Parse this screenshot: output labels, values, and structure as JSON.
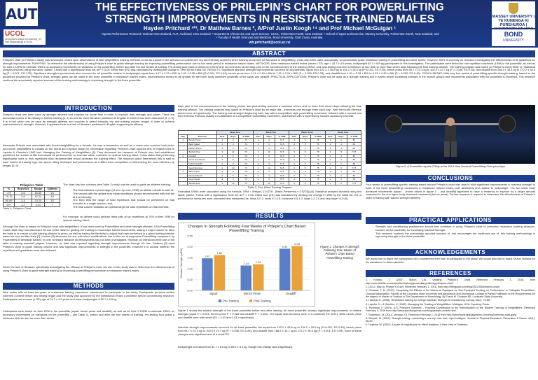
{
  "header": {
    "logo_left": "AUT",
    "logo_ucol": "UCOL",
    "logo_ucol_sub": "Universal College of Learning | Te Pae Matauranga ki Te Ao",
    "logo_massey": "MASSEY UNIVERSITY | TE KUNENGA KI PUREHUROA | UNIVERSITY OF NEW ZEALAND",
    "logo_bond": "BOND",
    "logo_bond_sub": "UNIVERSITY",
    "title_line1": "THE EFFECTIVENESS OF PRILEPIN’S CHART FOR POWERLIFTING",
    "title_line2": "STRENGTH IMPROVEMENTS IN RESISTANCE TRAINED MALES",
    "authors": "Hayden Pritchard ¹²³, Dr Matthew Barnes ², A/Prof Justin Keogh ¹⁴ and Prof Michael McGuigan ¹",
    "affil1": "¹ Sports Performance Research Institute New Zealand, AUT, Auckland, New Zealand. ² Department of Exercise and Sport Science, UCOL, Palmerston North, New Zealand. ³ School of Sport and Exercise, Massey University, Palmerston North, New Zealand; and",
    "affil2": "⁴ Faculty of Health Sciences and Medicine, Bond University, Gold Coast, Australia.",
    "email": "wh.pritchard@ucol.ac.nz"
  },
  "sections": {
    "abstract": "ABSTRACT",
    "introduction": "INTRODUCTION",
    "methods": "METHODS",
    "results": "RESULTS",
    "conclusions": "CONCLUSIONS",
    "practical": "PRACTICAL APPLICATIONS",
    "acknowledgements": "ACKNOWLEDGEMENTS",
    "references": "REFERENCES"
  },
  "text": {
    "abstract": "Prilepin’s chart (or Prilepin’s table) was developed, based upon observations of elite weightlifters training methods, to act as a guide in the selection of optimal set, rep and intensity schemes when training to improve performance in weightlifting. It has also been used, anecdotally, to successfully guide resistance training in powerlifting and other sports. However, there is currently no research investigating the effectiveness of its guidelines for strength improvements. PURPOSE: To determine the effectiveness of using Prilepin’s chart to guide strength training for improving powerlifting performance over a four week period in resistance trained males. METHODS: Nine resistance trained males (mean ± SD; age = 24.7 ± 4.9 years, bodyweight 82.7 ± 8.8 kg) participated in this investigation. The participants were tested for one repetition maximum (1RM) in the powerlifts, as well as for their 2-10RM to estimate 1RM’s on accessory movements (or variations on the powerlifts), before and after the four weeks of training. Pre-testing took place a minimum of three and no more than seven days prior to the commencement of the training period, and post-testing occurred a minimum of four and no more than seven days following the final training session. The training program was based on Prilepin’s chart (Table 1). Statistical analysis involved using two tailed, paired, T-tests with a significance level set at P < 0.05. Effect size (ES) was calculated by dividing the change in 1RM by the initial SD. RESULTS: Significant absolute strength improvements occurred for all powerlifts; squat from 122.2 ± 26.6 kg to 134.2 ± 25.5 kg (P<0.001, ES 0.45), bench press from 94.7 ± 22.3 kg to 100.4 ± 22.7 kg (P = 0.006, ES 0.26), and deadlift from 168.9 ± 34.1 kg to 172.2 ± 36.4 kg (P = 0.001, ES 0.39). Significant strength improvements also occurred for all powerlifts relative to bodyweight; squat from 1.47 ± 0.22 x BW to 1.62 ± 0.25 x BW (P<0.001, ES 0.61), bench press from 1.14 ± 0.19 x BW to 1.20 ± 0.19 x BW (P = 0.028, ES 0.33), and deadlift from 1.91 ± 0.28 x BW to 2.03 ± 0.30 x BW (P = 0.002, ES 0.43). CONCLUSIONS: With only four weeks of powerlifting specific strength training, based on the guidelines provided by Prilepin’s chart, strength gains can be made in the three powerlifts in resistance trained males. Improvements tended to be greater for the lower body dominant powerlifts of the squat and deadlift. PRACTICAL APPLICATIONS: Prilepin’s chart can be used as a strength training tool in sports where increasing strength in the muscle groups and movements associated with the powerlifts is important. This research confirms the anecdotally reported success of this training methodology in improving strength in the three powerlifts.",
    "intro1": "Prilepin’s chart has been used by strength athletes and coaches for some time in order to improve their strength and power. There are anecdotal reports of its efficacy in barbell training [1, 2] as well as some literature published in English in which it has been discussed [3, 4, 5]. It is a tool which can be used by strength athletes and coaches to select intensity, rep and training volume ranges in order to achieve improvements in strength. However, it appears there is a lack of literature published in English supporting its efficacy.",
    "intro2": "Alexander Prilepin was associated with Soviet weightlifting for a decade. He was a researcher as well as a coach who coached both junior and senior weightlifters to medals on the World and Olympic stage [6]. Information regarding Prilepin’s chart appears first in English texts in Laputin & Oleshko’s 1982 text, Managing the Training of Weightlifters [6]. They discussed the research of Prilepin who had established guidelines for number of lifts that should be performed for an exercise within a session for optimal training effect. It was stated that performing significantly more or less repetitions than recommended would decrease the training effect. The research which determined this is said to have looked at training logs, bar speed, lifting technique and performance at a 38km level competition in determining the most effective rep ranges [3, 5].",
    "intro3": "The chart has four columns (see Table 1) which can be used to guide an athletes training:",
    "intro_bullets": [
      "The first indicates a percentage (of one rep max, 1RM) an athlete intends to train at;",
      "The second tells the athlete how many repetitions should be performed with one set at that intensity;",
      "The third tells the range of total repetitions that should be performed on that exercise in a single session; and,",
      "The final column indicates an optimal target for total repetitions on that exercise."
    ],
    "intro4": "For example, an athlete could perform three sets of six repetitions at 75% of their 1RM for optimal training effect.",
    "intro5": "Although the chart is based on Prilepin’s work with weightlifters, it has been used by Powerlifters and other strength athletes. USA Powerlifting Coach Matt Gary has discussed his use of the table for guiding the training in most major barbell movements, stating a major reason he uses the table is to ensure a solid training stimulus is given, as well as having the flexibility to adjust total reps performed in a given training session based on how an lifter feels [7]. Koshus [3] discussed its use, with minor modifications due to the use of supportive Powerlifting equipment, by Powerlifters at Westside Barbell. In peer reviewed literature its effectiveness has not been investigated. Hartman [4] mentioned their use of the table in training baseball players. However, no data was reported regarding strength improvements through it’s use. Godawa [3] used Prilepin’s chart to guide training volume and saw significant improvements in strength in the powerlifts, however it is unclear whether the repetitions set guidelines were also followed.",
    "intro6": "Given the lack of literature specifically investigating the efficacy of Prilepin’s chart, the aim of this study was to determine the effectiveness of using Prilepin’s chart to guide strength training for improving powerlifting performance in resistance trained males.",
    "methods1": "Nine males with at least two-years of resistance training experience volunteered to participate in the study. Participants provided written informed consent before any testing began and the study was approved by the institutional Ethics Committee before commencing research. Participants had a mean (± SD) age of 24.7 ± 4.9 years and mean bodyweight of 82.7 ± 8.8 kg.",
    "methods2": "Participants were tested for their 1RM in the powerlifts (squat, bench press and deadlift), as well as for their 2-10RM to estimate 1RM’s on accessory movements (or variations on the powerlifts – see Table 2), before and after the four weeks of training. Pre-testing took place a minimum of three and no more than seven",
    "methods3": "days prior to the commencement of the training period, and post-testing occurred a minimum of four and no more than seven days following the final training session. The training program was based on Prilepin’s chart for all major lifts - exercises one through three each day - with the fourth exercise aimed more at hypertrophy. The training was arranged beginning each day with a competition style powerlifting movement, followed with a second and third exercise that was usually a modification of a competition powerlifting movement, and finished with a hypertrophy focused accessory exercise.",
    "results1": "Estimated 1RM’s were calculated using the formula: 1RM = Weight / (1.0278 - [Reps Performed x 0.0278]) [8]. Statistical analysis involved using two tailed, paired, T-tests with a significance level set at P < 0.05. Effect size (ES) was calculated by dividing the change in 1RM by the initial SD. ES of performance measures were calculated and interpreted as: trivial 0-0.2, small 0.2-0.6, moderate 0.6-1.2, large 1.2-2.0 and very large >2.0 [9].",
    "results2": "Figure 1 shows the relative strength of the three powerlifts before and after training. All three powerlifts showed significant improvements in relative strength (squat P < 0.001, bench press P = 0.028 and deadlift P = 0.002). The squat improvements were of a moderate ES (0.61), while bench press and deadlift were both small (ES = 0.33 and 0.43, respectively).",
    "results3": "Absolute strength improvements occurred for all three powerlifts; the squat from 122.2 ± 26.6 kg to 134.2 ± 25.5 kg (P<0.001, ES 0.45), bench press from 94.7 ± 22.3 kg to 100.4 ± 22.7 kg (P = 0.006, ES 0.26), and deadlift from 168.9 ± 34.1 kg to 172.2 ± 36.4 kg (P = 0.001, ES 0.39). Each of these changes was significant and of a small ES.",
    "results4": "Bodyweight increased from 82.7 ± 8.8 kg to 83.5 ± 8.3 kg, though this change was insignificant.",
    "conclusions": "Four weeks of powerlifting specific training based around Prilepin’s chart was able to elicit significant improvements in maximal strength in each of the three powerlifting movements in resistance trained males, both absolutely and relative to bodyweight. The two lower body dominant movements (squat – shown above in figure 2 – and deadlift) appeared to have a tendency to improve by a larger amount compared to the one upper body dominant movement (bench press). Further research is required to determine the effectiveness of Prilepin’s chart in training with trained strength athletes.",
    "practical_bullets": [
      "Strength and conditioning practitioners should feel confident in using Prilepin’s chart to prescribe resistance training sessions, focused on the powerlifts, for increasing maximal strength.",
      "This research confirms the anecdotally reported success of, and encourages the continued use of, this training methodology in improving strength in the three powerlifts."
    ],
    "acknowledgements": "We would like to thank the participants who volunteered their time to participant in the study. We would also like to thank Shaun Holland for his assistance in data collection.",
    "references": [
      "1. Kontos, T. (2007, March 15). Utilizing Prilepin’s Chart. Retrieved February 1, 2016, from http://www.elitefts.com/education/training/powerlifting/utilizing-prilepins-chart/",
      "2. (2012, May 8). Prilepin’s Chart. Retrieved February 1, 2016, from http://liftingcast.com/blog/2012/05/prilepins-chart/",
      "3. Godawa, T. M. (2012). Comparing the Effects of the Weeks of Equipped vs. Non-Equipped Training on Performance in Collegiate Powerlifters. Doctoral dissertation, Faculty of the Louisiana State University and Agricultural and Mechanical College in Partial Fulfillment of the Requirements for the degree of Master of Science in The Department of Kinesiology. By Travis M. Godawa BS, Louisiana State University.",
      "4. Hartman E. (2008). Resistance training for college baseball. Strength & Conditioning Journal, 30(2), 79-85.",
      "5. Laputin, N., & Oleshko, V. (1982). Managing the Training of Weightlifters. Michigan, USA: Sportivny Press.",
      "6. Pulenyev, F. (2001). A.S. Prilepin’s Scientific – Practical Contribution to the Intensification of the Modern Training of Weightlifters. Retrieved February 1, 2016 from http://www.sportivnypress.com/blog/prilepin-contrib.html",
      "7. Robertson, M. (2014, January 27). Retrieved February 1, 2016 from http://robertsontrainingsystems.com/blog/interview-matt-gary/",
      "8. Brzycki, M. (1993). Strength testing—predicting a one-rep max from reps-to-fatigue. Journal of Physical Education, Recreation & Dance, 64(1), 88-90.",
      "9. Hopkins, W. (2002). A scale of magnitudes for effect statistics. A New View of Statistics."
    ]
  },
  "prilepin_table": {
    "title": "Prilepin’s Table",
    "caption": "Table 1: Prilepin’s Chart",
    "headers": [
      "%",
      "Reps/Set",
      "Range",
      "Optimal"
    ],
    "rows": [
      [
        "<70",
        "3-6",
        "18-30",
        "24"
      ],
      [
        "70-79",
        "3-6",
        "12-24",
        "18"
      ],
      [
        "80-89",
        "2-4",
        "10-20",
        "15"
      ],
      [
        "90+",
        "1-2",
        "4-10",
        "7"
      ]
    ]
  },
  "program_table": {
    "caption": "Table 2: Four Week Training Program",
    "week_headers": [
      "Week One",
      "Week Two",
      "Week Three",
      "Week Four"
    ],
    "col_headers": [
      "Day",
      "Exercise",
      "Sets",
      "Reps",
      "% 1RM",
      "Sets",
      "Reps",
      "% 1RM",
      "Sets",
      "Reps",
      "% 1RM",
      "Sets",
      "Reps",
      "% 1RM"
    ],
    "rows": [
      [
        "1",
        "Bench Press",
        "4",
        "6",
        "70",
        "4",
        "6",
        "72.5",
        "4",
        "5",
        "75",
        "3",
        "4",
        "80"
      ],
      [
        "",
        "Back Squat",
        "4",
        "6",
        "70",
        "4",
        "6",
        "72.5",
        "4",
        "5",
        "75",
        "3",
        "4",
        "80"
      ],
      [
        "",
        "Military Press",
        "4",
        "6",
        "70",
        "4",
        "6",
        "72.5",
        "4",
        "5",
        "75",
        "3",
        "4",
        "80"
      ],
      [
        "",
        "Barbell Row",
        "3",
        "10",
        "70",
        "3",
        "10",
        "72.5",
        "3",
        "8",
        "75",
        "3",
        "8",
        "77.5"
      ],
      [
        "2",
        "Deadlift",
        "4",
        "6",
        "70",
        "4",
        "6",
        "72.5",
        "4",
        "5",
        "75",
        "3",
        "4",
        "80"
      ],
      [
        "",
        "Close Grip Bench",
        "4",
        "6",
        "70",
        "4",
        "6",
        "72.5",
        "4",
        "5",
        "75",
        "3",
        "4",
        "80"
      ],
      [
        "",
        "Deficit Deadlift",
        "4",
        "6",
        "70",
        "4",
        "6",
        "72.5",
        "4",
        "5",
        "75",
        "3",
        "4",
        "80"
      ],
      [
        "",
        "Good Morning",
        "3",
        "10",
        "70",
        "3",
        "10",
        "72.5",
        "3",
        "8",
        "75",
        "3",
        "8",
        "77.5"
      ],
      [
        "3",
        "Back Squat",
        "4",
        "6",
        "70",
        "4",
        "6",
        "72.5",
        "4",
        "5",
        "75",
        "3",
        "4",
        "80"
      ],
      [
        "",
        "Paused Bench",
        "4",
        "6",
        "70",
        "4",
        "6",
        "72.5",
        "4",
        "5",
        "75",
        "3",
        "4",
        "80"
      ],
      [
        "",
        "Front Squat",
        "4",
        "6",
        "70",
        "4",
        "6",
        "72.5",
        "4",
        "5",
        "75",
        "3",
        "4",
        "80"
      ],
      [
        "",
        "Barbell Row",
        "3",
        "10",
        "70",
        "3",
        "10",
        "72.5",
        "3",
        "8",
        "75",
        "3",
        "8",
        "77.5"
      ]
    ]
  },
  "figure2": {
    "caption": "Figure 2: A Powerlifter squats 270kg at the 2014 New Zealand Powerlifting Championships"
  },
  "figure1_caption": "Figure 1: Changes in Strength Following Four Weeks of Prilepin’s Chart Based Powerlifting Training",
  "chart_data": {
    "type": "bar",
    "title": "Changes In Strength Following Four Weeks of Prilepin's Chart Based Powerlifting Training",
    "ylabel": "Relative Strength (xBW)",
    "xlabel": "",
    "categories": [
      "Squat",
      "Bench Press",
      "Deadlift"
    ],
    "series": [
      {
        "name": "Pre-Training",
        "values": [
          1.47,
          1.14,
          1.91
        ],
        "color": "#5b7fc7"
      },
      {
        "name": "Post-Training",
        "values": [
          1.62,
          1.2,
          2.03
        ],
        "color": "#e8a33c"
      }
    ],
    "value_labels": {
      "Pre-Training": [
        "1.47",
        "1.14",
        "1.91"
      ],
      "Post-Training": [
        "1.62",
        "1.20",
        "2.03"
      ]
    },
    "ylim": [
      0,
      2.5
    ],
    "yticks": [
      "0.00",
      "0.50",
      "1.00",
      "1.50",
      "2.00",
      "2.50"
    ],
    "legend": "bottom",
    "grid": true
  }
}
